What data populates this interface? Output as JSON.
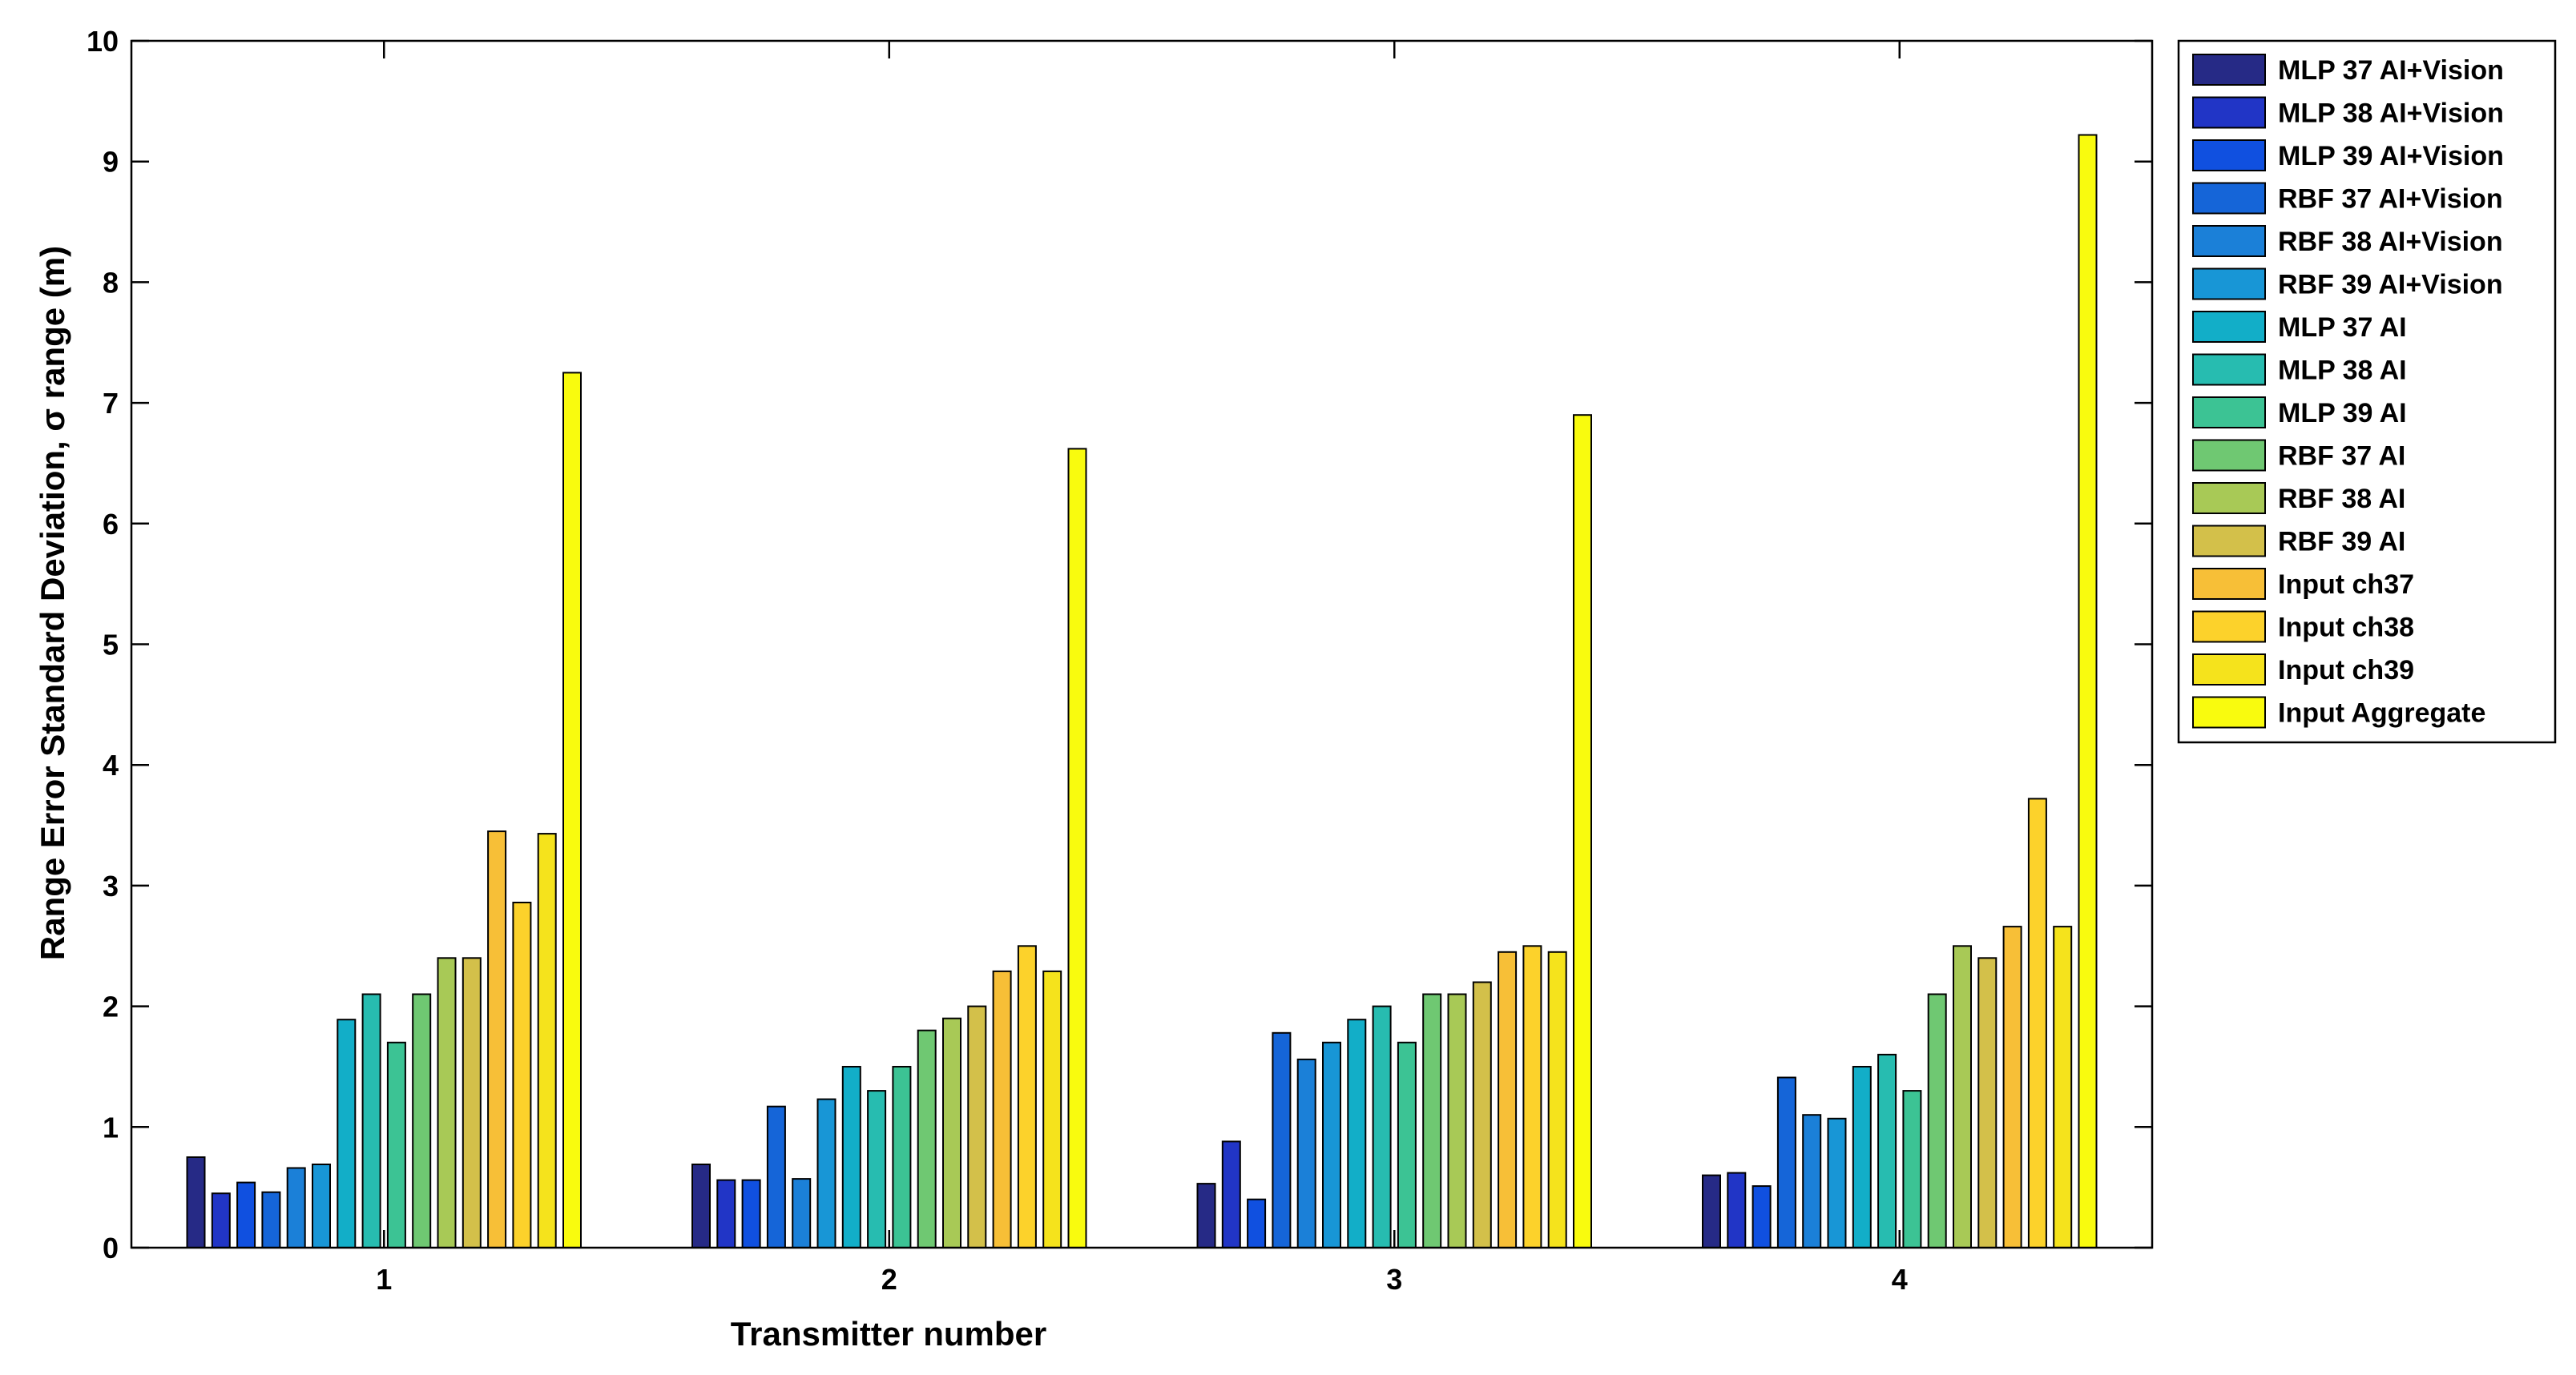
{
  "chart_data": {
    "type": "bar",
    "xlabel": "Transmitter number",
    "ylabel": "Range Error Standard Deviation, σ range (m)",
    "ylim": [
      0,
      10
    ],
    "yticks": [
      "0",
      "1",
      "2",
      "3",
      "4",
      "5",
      "6",
      "7",
      "8",
      "9",
      "10"
    ],
    "grid": false,
    "legend_position": "outside-right-top",
    "categories": [
      "1",
      "2",
      "3",
      "4"
    ],
    "series": [
      {
        "name": "MLP 37 AI+Vision",
        "color": "#262a86",
        "values": [
          0.75,
          0.69,
          0.53,
          0.6
        ]
      },
      {
        "name": "MLP 38 AI+Vision",
        "color": "#2135c6",
        "values": [
          0.45,
          0.56,
          0.88,
          0.62
        ]
      },
      {
        "name": "MLP 39 AI+Vision",
        "color": "#1050e0",
        "values": [
          0.54,
          0.56,
          0.4,
          0.51
        ]
      },
      {
        "name": "RBF 37 AI+Vision",
        "color": "#1565d8",
        "values": [
          0.46,
          1.17,
          1.78,
          1.41
        ]
      },
      {
        "name": "RBF 38 AI+Vision",
        "color": "#1b80d8",
        "values": [
          0.66,
          0.57,
          1.56,
          1.1
        ]
      },
      {
        "name": "RBF 39 AI+Vision",
        "color": "#1896d6",
        "values": [
          0.69,
          1.23,
          1.7,
          1.07
        ]
      },
      {
        "name": "MLP 37 AI",
        "color": "#12aec8",
        "values": [
          1.89,
          1.5,
          1.89,
          1.5
        ]
      },
      {
        "name": "MLP 38 AI",
        "color": "#27bcb0",
        "values": [
          2.1,
          1.3,
          2.0,
          1.6
        ]
      },
      {
        "name": "MLP 39 AI",
        "color": "#3cc394",
        "values": [
          1.7,
          1.5,
          1.7,
          1.3
        ]
      },
      {
        "name": "RBF 37 AI",
        "color": "#6fc872",
        "values": [
          2.1,
          1.8,
          2.1,
          2.1
        ]
      },
      {
        "name": "RBF 38 AI",
        "color": "#a8c956",
        "values": [
          2.4,
          1.9,
          2.1,
          2.5
        ]
      },
      {
        "name": "RBF 39 AI",
        "color": "#d3c04a",
        "values": [
          2.4,
          2.0,
          2.2,
          2.4
        ]
      },
      {
        "name": "Input ch37",
        "color": "#f7bf37",
        "values": [
          3.45,
          2.29,
          2.45,
          2.66
        ]
      },
      {
        "name": "Input ch38",
        "color": "#fcd22b",
        "values": [
          2.86,
          2.5,
          2.5,
          3.72
        ]
      },
      {
        "name": "Input ch39",
        "color": "#f5e31c",
        "values": [
          3.43,
          2.29,
          2.45,
          2.66
        ]
      },
      {
        "name": "Input Aggregate",
        "color": "#f9fb0e",
        "values": [
          7.25,
          6.62,
          6.9,
          9.22
        ]
      }
    ]
  }
}
